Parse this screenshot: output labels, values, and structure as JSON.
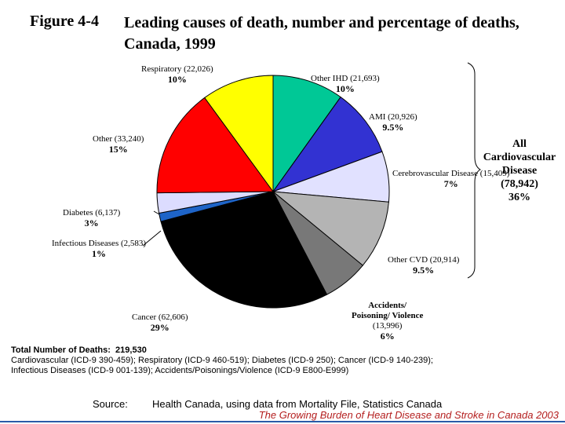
{
  "figure": {
    "label": "Figure 4-4",
    "title": "Leading causes of death, number and percentage of deaths, Canada, 1999"
  },
  "chart_data": {
    "type": "pie",
    "title": "Leading causes of death, number and percentage of deaths, Canada, 1999",
    "slices": [
      {
        "id": "other-ihd",
        "name": "Other IHD",
        "value": 21693,
        "value_label": "(21,693)",
        "percent": "10%",
        "color": "#00c896"
      },
      {
        "id": "ami",
        "name": "AMI",
        "value": 20926,
        "value_label": "(20,926)",
        "percent": "9.5%",
        "color": "#3232d2"
      },
      {
        "id": "cerebrovascular",
        "name": "Cerebrovascular Disease",
        "name_line1": "Cerebrovascular",
        "name_line2": "Disease",
        "value": 15409,
        "value_label": "(15,409)",
        "percent": "7%",
        "color": "#e1e1ff"
      },
      {
        "id": "other-cvd",
        "name": "Other CVD",
        "value": 20914,
        "value_label": "(20,914)",
        "percent": "9.5%",
        "color": "#b4b4b4"
      },
      {
        "id": "accidents",
        "name": "Accidents/ Poisoning/ Violence",
        "name_line1": "Accidents/",
        "name_line2": "Poisoning/ Violence",
        "value": 13996,
        "value_label": "(13,996)",
        "percent": "6%",
        "color": "#787878"
      },
      {
        "id": "cancer",
        "name": "Cancer",
        "value": 62606,
        "value_label": "(62,606)",
        "percent": "29%",
        "color": "#000000"
      },
      {
        "id": "infectious",
        "name": "Infectious Diseases",
        "value": 2583,
        "value_label": "(2,583)",
        "percent": "1%",
        "color": "#1e64c8"
      },
      {
        "id": "diabetes",
        "name": "Diabetes",
        "value": 6137,
        "value_label": "(6,137)",
        "percent": "3%",
        "color": "#dcdcff"
      },
      {
        "id": "other",
        "name": "Other",
        "value": 33240,
        "value_label": "(33,240)",
        "percent": "15%",
        "color": "#ff0000"
      },
      {
        "id": "respiratory",
        "name": "Respiratory",
        "value": 22026,
        "value_label": "(22,026)",
        "percent": "10%",
        "color": "#ffff00"
      }
    ],
    "group_annotation": {
      "line1": "All",
      "line2": "Cardiovascular",
      "line3": "Disease",
      "value_label": "(78,942)",
      "percent": "36%"
    }
  },
  "footer": {
    "total_label": "Total Number of Deaths:",
    "total_value": "219,530",
    "icd_line1": "Cardiovascular (ICD-9 390-459); Respiratory (ICD-9 460-519); Diabetes (ICD-9 250); Cancer (ICD-9 140-239);",
    "icd_line2": "Infectious Diseases (ICD-9 001-139); Accidents/Poisonings/Violence (ICD-9 E800-E999)",
    "source_label": "Source:",
    "source_text": "Health Canada, using data from Mortality File, Statistics Canada",
    "attribution": "The Growing Burden of Heart Disease and Stroke in Canada 2003"
  },
  "colors": {
    "attribution": "#b41e1e",
    "bottom_line": "#2a5aa8"
  }
}
